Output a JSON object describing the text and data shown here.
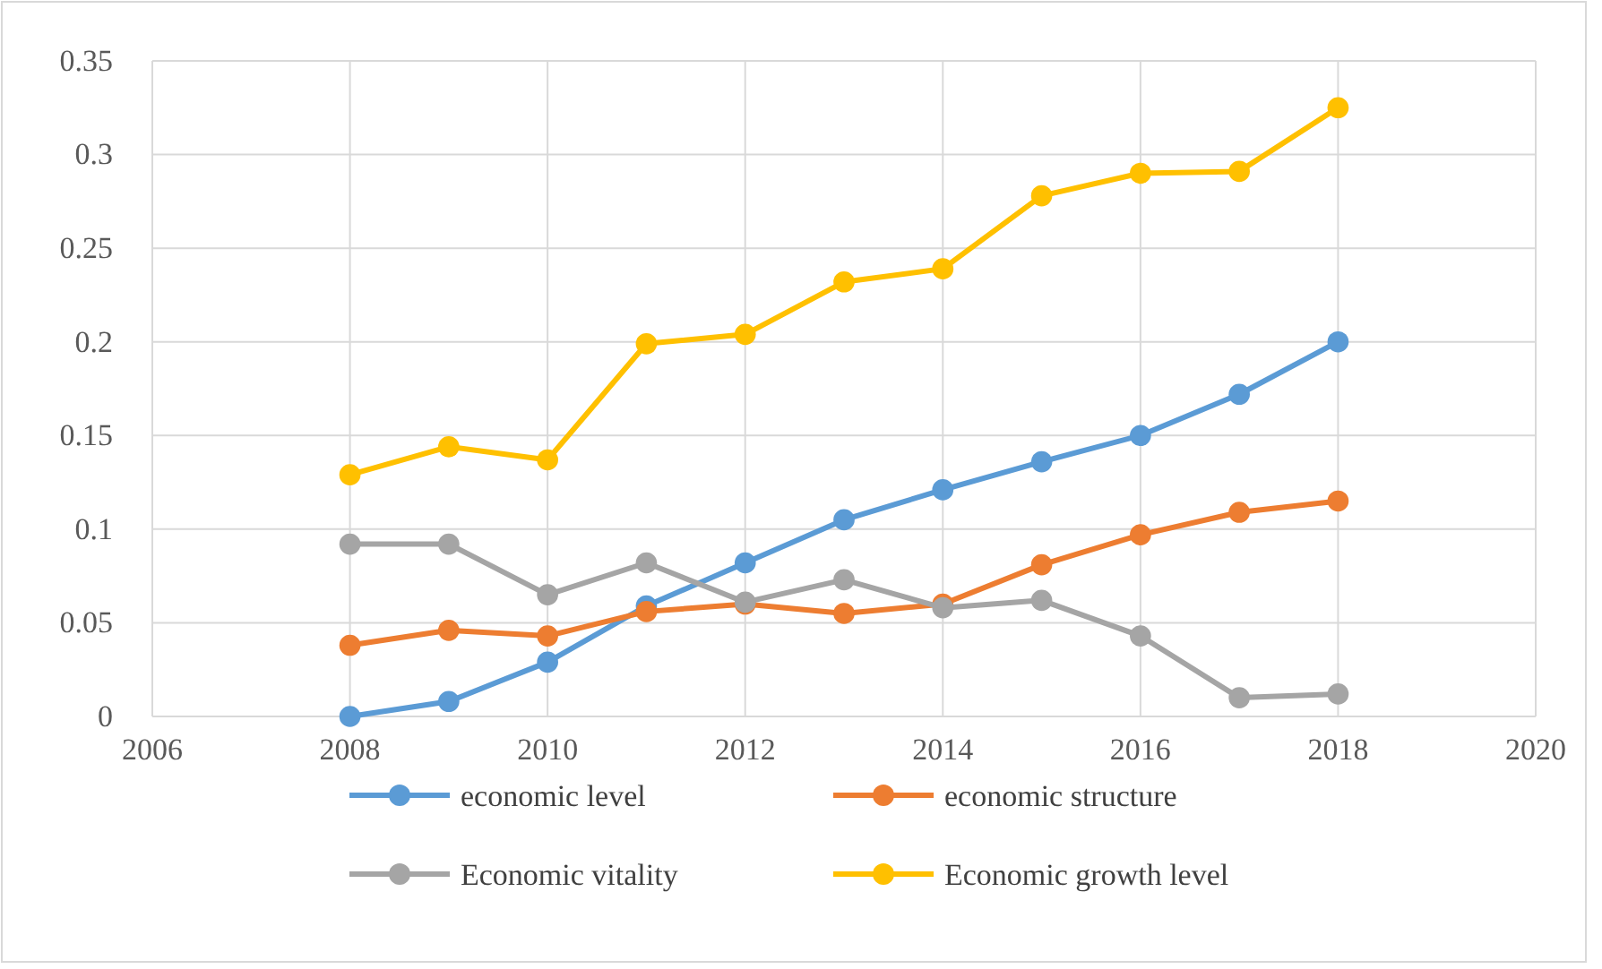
{
  "chart_data": {
    "type": "line",
    "x": [
      2008,
      2009,
      2010,
      2011,
      2012,
      2013,
      2014,
      2015,
      2016,
      2017,
      2018
    ],
    "xlim": [
      2006,
      2020
    ],
    "xticks": [
      2006,
      2008,
      2010,
      2012,
      2014,
      2016,
      2018,
      2020
    ],
    "ylim": [
      0,
      0.35
    ],
    "yticks": [
      0,
      0.05,
      0.1,
      0.15,
      0.2,
      0.25,
      0.3,
      0.35
    ],
    "grid": true,
    "legend": "bottom",
    "marker": "circle",
    "series": [
      {
        "name": "economic level",
        "color": "#5b9bd5",
        "values": [
          0,
          0.008,
          0.029,
          0.059,
          0.082,
          0.105,
          0.121,
          0.136,
          0.15,
          0.172,
          0.2
        ]
      },
      {
        "name": "economic structure",
        "color": "#ed7d31",
        "values": [
          0.038,
          0.046,
          0.043,
          0.056,
          0.06,
          0.055,
          0.06,
          0.081,
          0.097,
          0.109,
          0.115
        ]
      },
      {
        "name": "Economic vitality",
        "color": "#a5a5a5",
        "values": [
          0.092,
          0.092,
          0.065,
          0.082,
          0.061,
          0.073,
          0.058,
          0.062,
          0.043,
          0.01,
          0.012
        ]
      },
      {
        "name": "Economic growth level",
        "color": "#ffc000",
        "values": [
          0.129,
          0.144,
          0.137,
          0.199,
          0.204,
          0.232,
          0.239,
          0.278,
          0.29,
          0.291,
          0.325
        ]
      }
    ]
  }
}
